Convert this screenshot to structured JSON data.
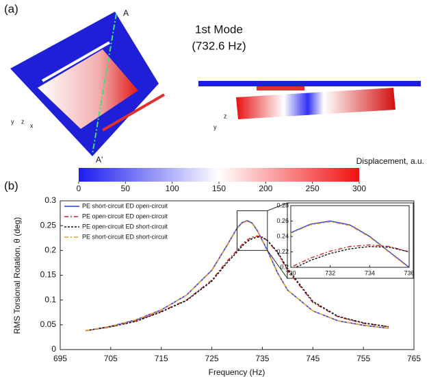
{
  "panel_a": {
    "label": "(a)",
    "mode_title": "1st Mode",
    "mode_freq": "(732.6 Hz)",
    "point_top": "A",
    "point_bottom": "A'",
    "triad_left": [
      "y",
      "z",
      "x"
    ],
    "triad_right": [
      "z",
      "y"
    ]
  },
  "colorbar": {
    "label": "Displacement, a.u.",
    "lim": [
      0,
      300
    ],
    "ticks": [
      0,
      50,
      100,
      150,
      200,
      250,
      300
    ],
    "colors": [
      "#1c1cf0",
      "#ffffff",
      "#f01010"
    ]
  },
  "chart_data": {
    "type": "line",
    "panel_label": "(b)",
    "x_label": "Frequency (Hz)",
    "y_label": "RMS Torsional Rotation, θ (deg)",
    "x": [
      700,
      705,
      710,
      715,
      720,
      725,
      728,
      730,
      731,
      732,
      733,
      734,
      735,
      736,
      738,
      740,
      745,
      750,
      755,
      760
    ],
    "series": [
      {
        "name": "PE short-circuit ED open-circuit",
        "color": "#2b3fd6",
        "dash": "none",
        "values": [
          0.038,
          0.047,
          0.06,
          0.08,
          0.11,
          0.16,
          0.21,
          0.245,
          0.256,
          0.26,
          0.255,
          0.24,
          0.22,
          0.2,
          0.155,
          0.12,
          0.078,
          0.058,
          0.049,
          0.043
        ]
      },
      {
        "name": "PE open-circuit ED open-circuit",
        "color": "#d62020",
        "dash": "6 3 2 3",
        "values": [
          0.038,
          0.046,
          0.058,
          0.077,
          0.1,
          0.14,
          0.178,
          0.2,
          0.212,
          0.221,
          0.227,
          0.229,
          0.227,
          0.22,
          0.195,
          0.16,
          0.095,
          0.066,
          0.053,
          0.046
        ]
      },
      {
        "name": "PE open-circuit ED short-circuit",
        "color": "#111111",
        "dash": "3 2",
        "values": [
          0.038,
          0.046,
          0.057,
          0.076,
          0.099,
          0.138,
          0.175,
          0.197,
          0.209,
          0.218,
          0.224,
          0.227,
          0.226,
          0.22,
          0.197,
          0.163,
          0.097,
          0.067,
          0.054,
          0.046
        ]
      },
      {
        "name": "PE short-circuit ED short-circuit",
        "color": "#f0a030",
        "dash": "6 3 2 3",
        "values": [
          0.038,
          0.047,
          0.06,
          0.08,
          0.11,
          0.159,
          0.209,
          0.244,
          0.255,
          0.259,
          0.254,
          0.239,
          0.219,
          0.199,
          0.154,
          0.12,
          0.078,
          0.058,
          0.049,
          0.043
        ]
      }
    ],
    "xlim": [
      695,
      765
    ],
    "xticks": [
      695,
      705,
      715,
      725,
      735,
      745,
      755,
      765
    ],
    "ylim": [
      0,
      0.3
    ],
    "yticks": [
      0,
      0.05,
      0.1,
      0.15,
      0.2,
      0.25,
      0.3
    ],
    "legend": "upper-left",
    "inset": {
      "xlim": [
        730,
        736
      ],
      "xticks": [
        730,
        732,
        734,
        736
      ],
      "ylim": [
        0.2,
        0.28
      ],
      "yticks": [
        0.2,
        0.22,
        0.24,
        0.26,
        0.28
      ]
    }
  }
}
